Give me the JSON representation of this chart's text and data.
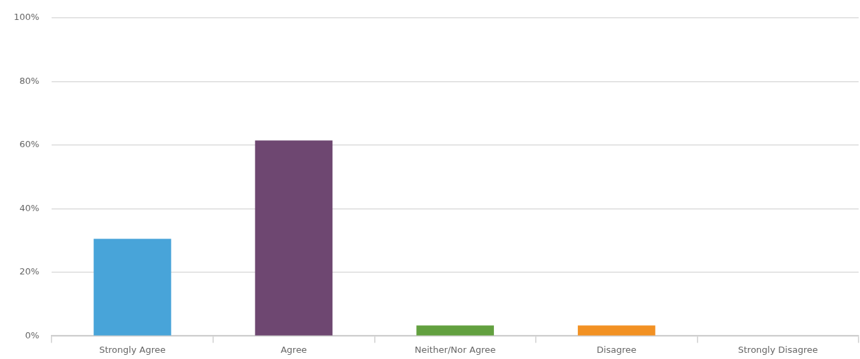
{
  "chart_data": {
    "type": "bar",
    "categories": [
      "Strongly Agree",
      "Agree",
      "Neither/Nor Agree",
      "Disagree",
      "Strongly Disagree"
    ],
    "values": [
      30.5,
      61.4,
      3.3,
      3.3,
      0
    ],
    "colors": [
      "#48a4d9",
      "#6e4771",
      "#62a03f",
      "#f29123",
      "#aaaaaa"
    ],
    "ylim": [
      0,
      100
    ],
    "yticks": [
      {
        "value": 0,
        "label": "0%"
      },
      {
        "value": 20,
        "label": "20%"
      },
      {
        "value": 40,
        "label": "40%"
      },
      {
        "value": 60,
        "label": "60%"
      },
      {
        "value": 80,
        "label": "80%"
      },
      {
        "value": 100,
        "label": "100%"
      }
    ],
    "grid": "y",
    "legend": false
  }
}
